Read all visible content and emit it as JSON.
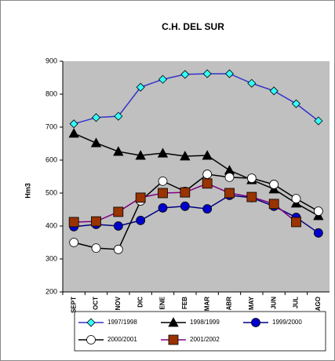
{
  "chart_data": {
    "type": "line",
    "title": "C.H. DEL SUR",
    "y_label": "Hm3",
    "categories": [
      "SEPT",
      "OCT",
      "NOV",
      "DIC",
      "ENE",
      "FEB",
      "MAR",
      "ABR",
      "MAY",
      "JUN",
      "JUL",
      "AGO"
    ],
    "series": [
      {
        "name": "1997/1998",
        "color": "#3333cc",
        "marker": "diamond",
        "marker_fill": "#33ffff",
        "values": [
          710,
          729,
          733,
          821,
          845,
          860,
          862,
          862,
          833,
          810,
          771,
          719
        ]
      },
      {
        "name": "1998/1999",
        "color": "#000000",
        "marker": "triangle",
        "marker_fill": "#000000",
        "values": [
          681,
          652,
          626,
          614,
          621,
          612,
          614,
          569,
          540,
          512,
          469,
          431
        ]
      },
      {
        "name": "1999/2000",
        "color": "#000080",
        "marker": "circle",
        "marker_fill": "#0000cc",
        "values": [
          398,
          405,
          400,
          417,
          455,
          460,
          452,
          493,
          486,
          460,
          426,
          379
        ]
      },
      {
        "name": "2000/2001",
        "color": "#000000",
        "marker": "circle",
        "marker_fill": "#ffffff",
        "values": [
          350,
          333,
          329,
          476,
          536,
          505,
          557,
          548,
          545,
          526,
          483,
          445
        ]
      },
      {
        "name": "2001/2002",
        "color": "#800080",
        "marker": "square",
        "marker_fill": "#993300",
        "values": [
          412,
          414,
          443,
          486,
          500,
          502,
          529,
          500,
          488,
          467,
          412,
          null
        ]
      }
    ],
    "ylim": [
      200,
      900
    ],
    "yticks": [
      200,
      300,
      400,
      500,
      600,
      700,
      800,
      900
    ]
  }
}
